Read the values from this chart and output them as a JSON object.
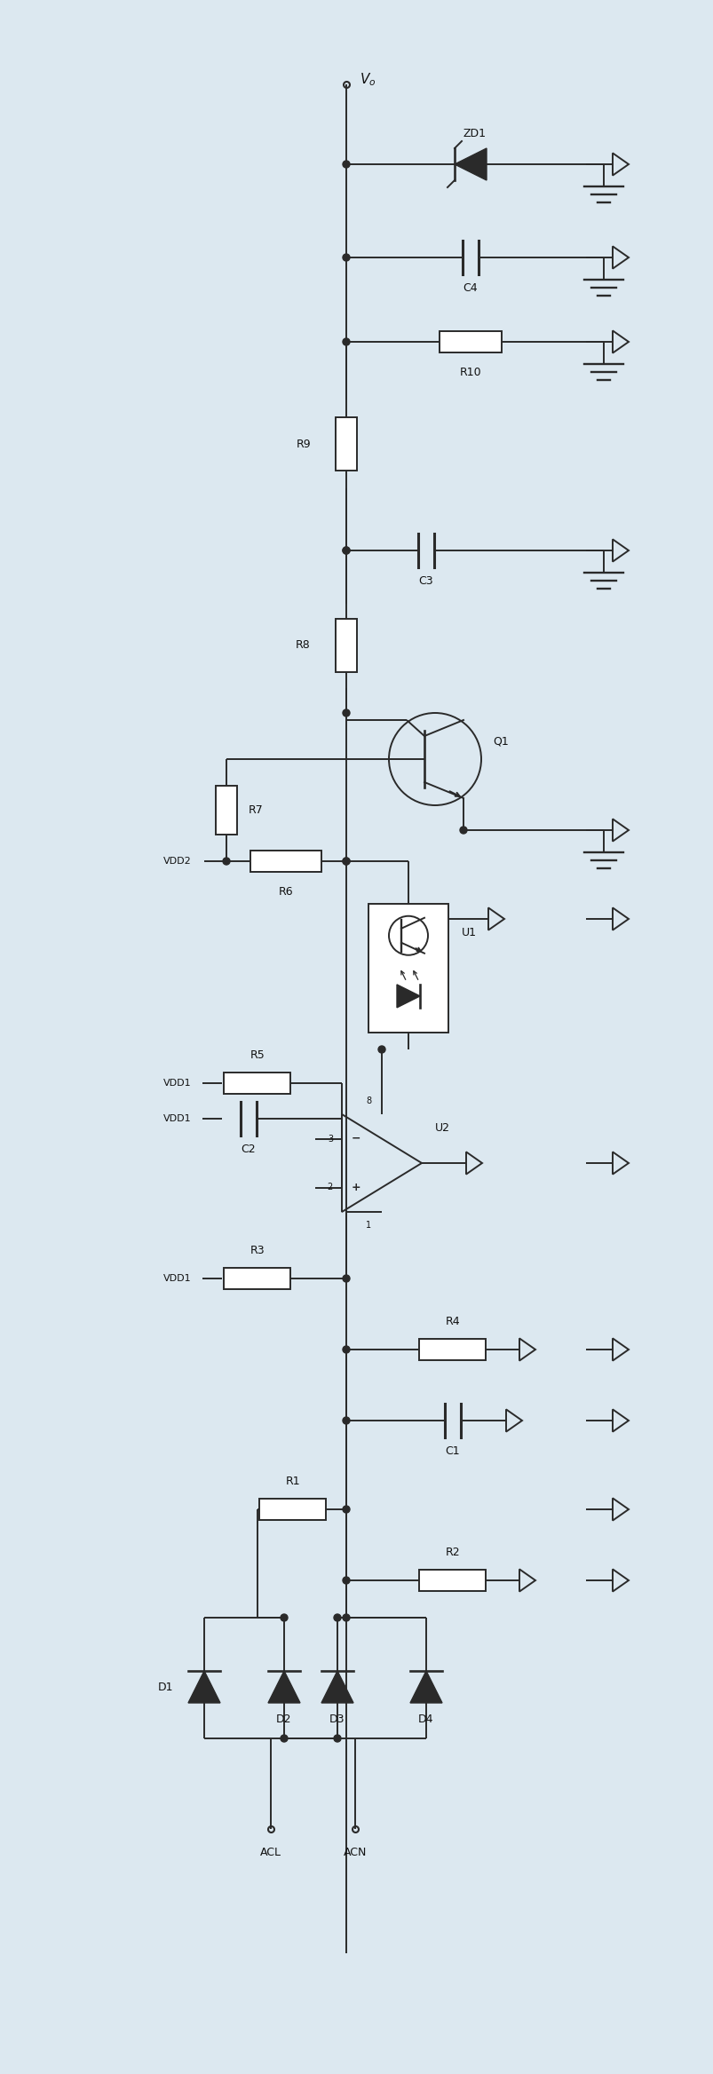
{
  "bg_color": "#dce8f0",
  "line_color": "#2a2a2a",
  "text_color": "#111111",
  "figsize": [
    8.04,
    23.36
  ],
  "dpi": 100,
  "lw": 1.4,
  "components": {
    "Vo_label": "Vo",
    "labels": [
      "ZD1",
      "C4",
      "R10",
      "R9",
      "C3",
      "R8",
      "Q1",
      "VDD2",
      "R7",
      "R6",
      "U1",
      "VDD1",
      "R5",
      "C2",
      "U2",
      "VDD1_2",
      "R3",
      "R4",
      "C1",
      "R1",
      "R2",
      "D1",
      "D2",
      "D3",
      "D4",
      "ACL",
      "ACN"
    ]
  }
}
